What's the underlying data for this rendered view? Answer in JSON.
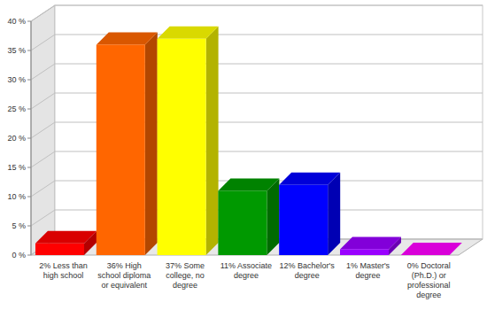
{
  "chart_data": {
    "type": "bar",
    "categories": [
      "2% Less than high school",
      "36% High school diploma or equivalent",
      "37% Some college, no degree",
      "11% Associate degree",
      "12% Bachelor's degree",
      "1% Master's degree",
      "0% Doctoral (Ph.D.) or professional degree"
    ],
    "values": [
      2,
      36,
      37,
      11,
      12,
      1,
      0
    ],
    "colors": [
      "#ff0000",
      "#ff6600",
      "#ffff00",
      "#009900",
      "#0000ff",
      "#9900ff",
      "#ff00ff"
    ],
    "ylim": [
      0,
      40
    ],
    "yticks": [
      {
        "value": 0,
        "label": "0 %"
      },
      {
        "value": 5,
        "label": "5 %"
      },
      {
        "value": 10,
        "label": "10 %"
      },
      {
        "value": 15,
        "label": "15 %"
      },
      {
        "value": 20,
        "label": "20 %"
      },
      {
        "value": 25,
        "label": "25 %"
      },
      {
        "value": 30,
        "label": "30 %"
      },
      {
        "value": 35,
        "label": "35 %"
      },
      {
        "value": 40,
        "label": "40 %"
      }
    ],
    "grid": true
  }
}
